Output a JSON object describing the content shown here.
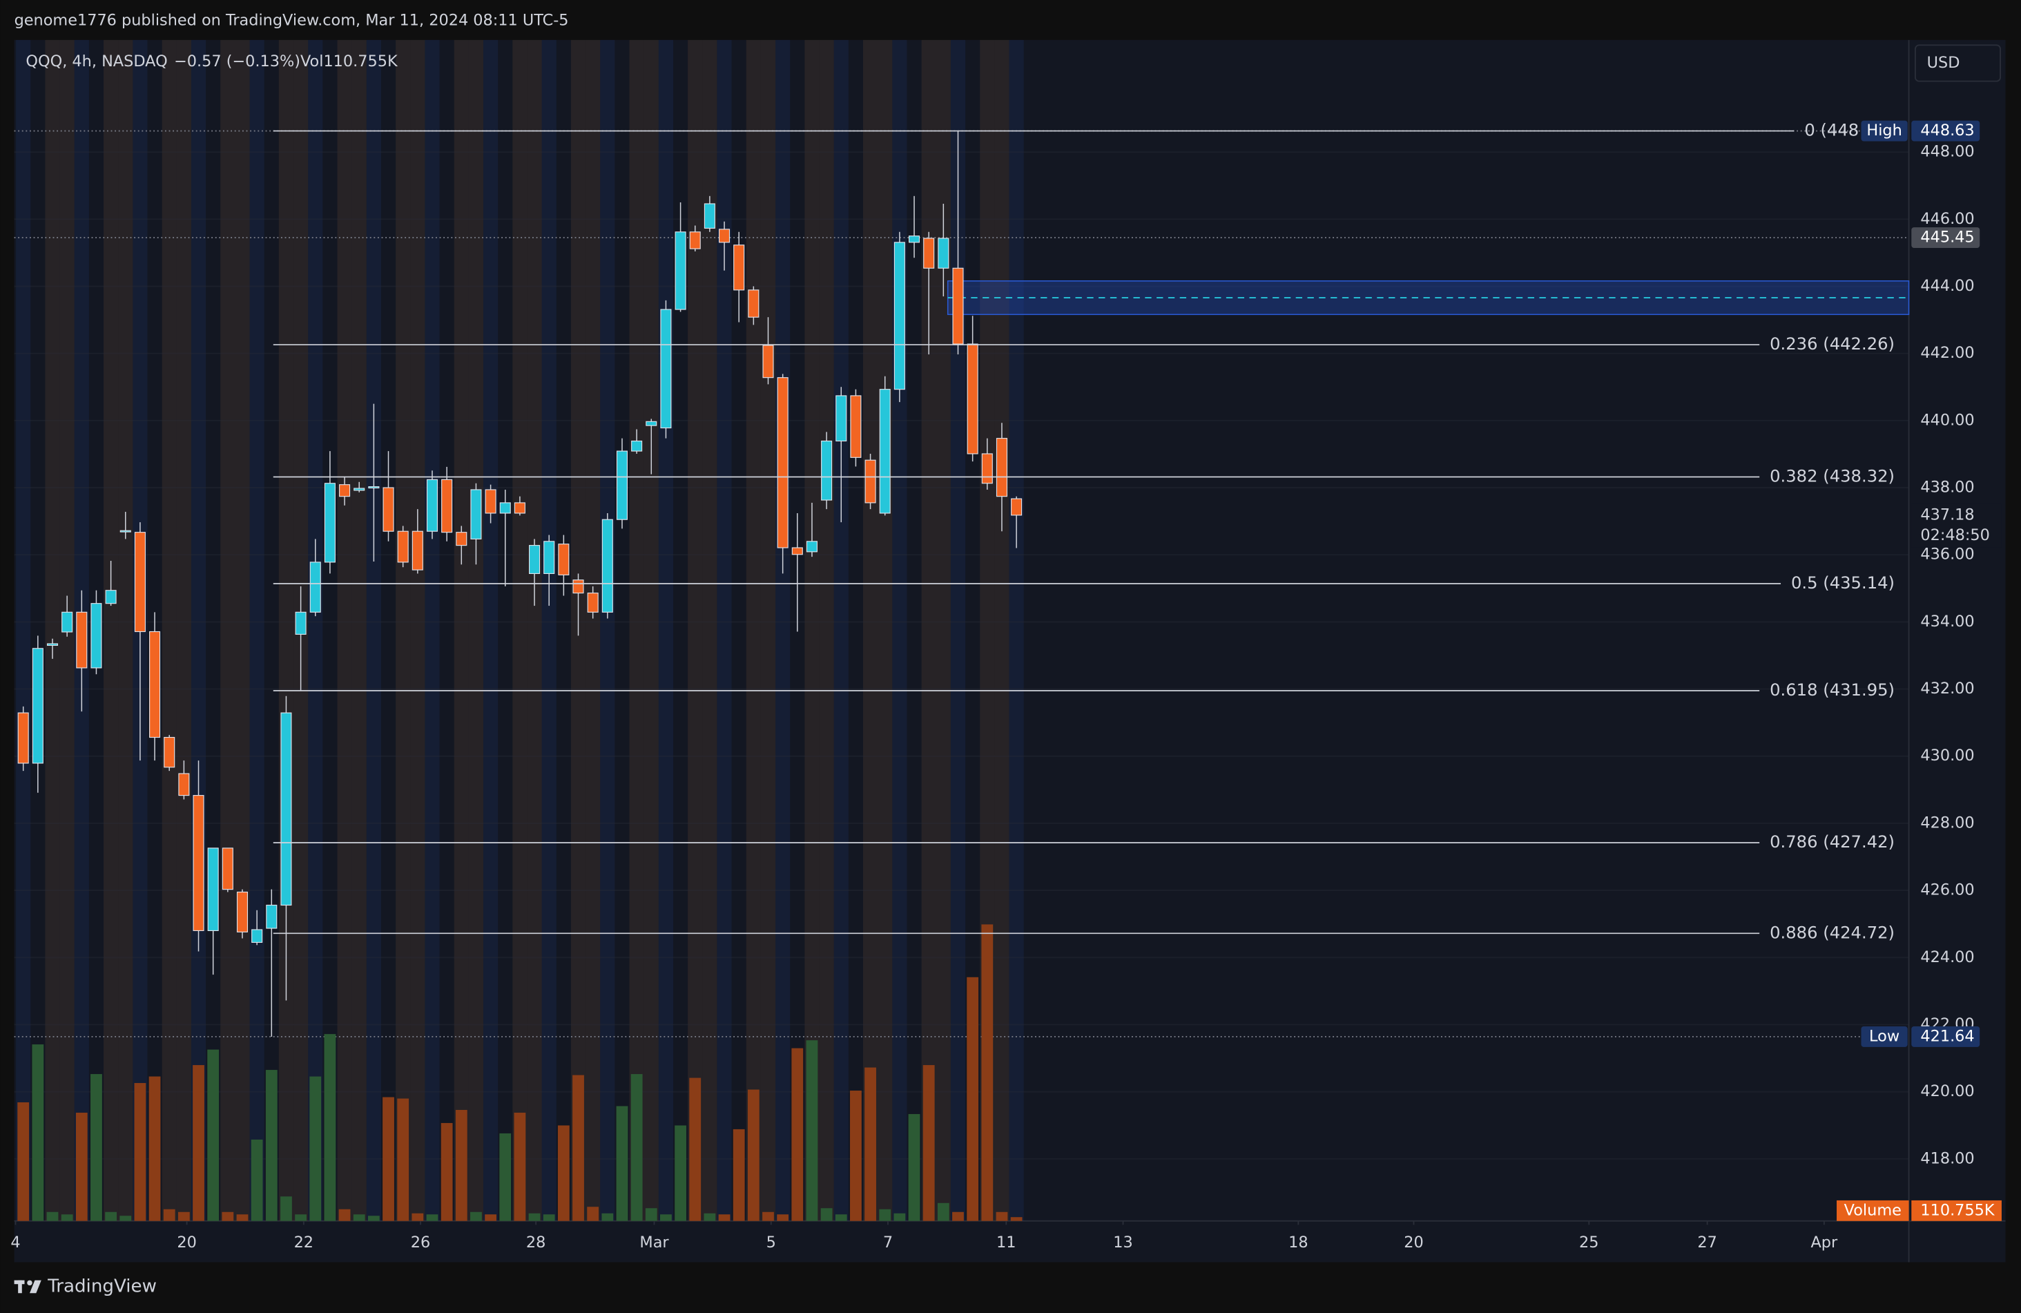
{
  "header": {
    "title": "genome1776 published on TradingView.com, Mar 11, 2024 08:11 UTC-5",
    "brand": "TradingView"
  },
  "chart_data": {
    "type": "candlestick",
    "symbol": "QQQ, 4h, NASDAQ",
    "change": "−0.57 (−0.13%)",
    "volume_text": "Vol110.755K",
    "currency": "USD",
    "x": [
      0,
      1,
      2,
      3,
      4,
      5,
      6,
      7,
      8,
      9,
      10,
      11,
      12,
      13,
      14,
      15,
      16,
      17,
      18,
      19,
      20,
      21,
      22,
      23,
      24,
      25,
      26,
      27,
      28,
      29,
      30,
      31,
      32,
      33,
      34,
      35,
      36,
      37,
      38,
      39,
      40,
      41,
      42,
      43,
      44,
      45,
      46,
      47,
      48,
      49,
      50,
      51,
      52,
      53,
      54,
      55,
      56,
      57,
      58,
      59,
      60,
      61,
      62,
      63,
      64,
      65,
      66,
      67,
      68
    ],
    "open": [
      431.29,
      429.79,
      433.3,
      433.7,
      434.29,
      432.63,
      434.55,
      436.7,
      436.67,
      433.71,
      430.56,
      429.48,
      428.83,
      424.8,
      427.26,
      425.95,
      424.45,
      424.87,
      425.56,
      433.63,
      434.29,
      435.78,
      438.09,
      437.92,
      437.99,
      438.0,
      436.7,
      436.7,
      436.7,
      438.24,
      436.67,
      436.47,
      437.94,
      437.24,
      437.55,
      435.44,
      435.44,
      436.32,
      435.25,
      434.86,
      434.29,
      437.05,
      439.09,
      439.85,
      439.78,
      443.31,
      445.62,
      445.73,
      445.7,
      445.23,
      443.89,
      442.24,
      441.28,
      436.21,
      436.09,
      437.63,
      439.39,
      440.74,
      438.82,
      437.24,
      440.93,
      445.31,
      445.43,
      444.54,
      444.54,
      442.28,
      439.01,
      439.47,
      437.67
    ],
    "high": [
      431.48,
      433.59,
      433.5,
      434.78,
      434.94,
      434.94,
      435.82,
      437.28,
      436.97,
      434.29,
      430.63,
      429.87,
      429.87,
      427.26,
      427.26,
      426.03,
      425.41,
      426.03,
      431.79,
      435.06,
      436.47,
      439.09,
      438.32,
      438.17,
      440.5,
      439.09,
      436.86,
      437.36,
      438.51,
      438.62,
      436.86,
      438.13,
      438.09,
      437.94,
      437.74,
      436.47,
      436.59,
      436.59,
      435.44,
      435.06,
      437.24,
      439.47,
      439.74,
      440.05,
      443.58,
      446.5,
      445.81,
      446.69,
      445.93,
      445.62,
      444.0,
      443.08,
      441.39,
      437.24,
      437.55,
      439.66,
      441.0,
      440.93,
      439.01,
      441.32,
      445.62,
      446.69,
      445.62,
      446.46,
      448.63,
      443.12,
      439.47,
      439.93,
      437.74
    ],
    "low": [
      429.56,
      428.91,
      432.9,
      433.56,
      431.33,
      432.44,
      434.48,
      436.47,
      429.87,
      429.87,
      429.56,
      428.71,
      424.18,
      423.49,
      425.95,
      424.57,
      424.37,
      421.64,
      422.72,
      431.94,
      434.17,
      435.44,
      437.47,
      437.86,
      435.8,
      436.4,
      435.63,
      435.44,
      436.47,
      436.4,
      435.71,
      435.71,
      436.94,
      435.06,
      437.17,
      434.48,
      434.48,
      434.78,
      433.59,
      434.1,
      434.1,
      436.78,
      439.01,
      438.4,
      439.47,
      443.24,
      445.04,
      445.62,
      444.47,
      442.93,
      442.85,
      441.08,
      435.44,
      433.71,
      435.94,
      437.36,
      436.97,
      438.63,
      437.36,
      437.17,
      440.55,
      444.85,
      441.97,
      443.7,
      441.97,
      438.78,
      437.94,
      436.7,
      436.2
    ],
    "close": [
      429.79,
      433.21,
      433.35,
      434.29,
      432.63,
      434.55,
      434.94,
      436.72,
      433.71,
      430.56,
      429.67,
      428.83,
      424.8,
      427.26,
      426.03,
      424.76,
      424.83,
      425.56,
      431.29,
      434.29,
      435.78,
      438.13,
      437.74,
      437.98,
      438.03,
      436.7,
      435.78,
      435.55,
      438.24,
      436.67,
      436.28,
      437.94,
      437.24,
      437.55,
      437.24,
      436.28,
      436.4,
      435.4,
      434.86,
      434.29,
      437.05,
      439.09,
      439.39,
      439.97,
      443.31,
      445.62,
      445.12,
      446.46,
      445.31,
      443.89,
      443.08,
      441.28,
      436.21,
      436.01,
      436.4,
      439.39,
      440.74,
      438.9,
      437.55,
      440.93,
      445.31,
      445.5,
      444.54,
      445.43,
      442.28,
      439.01,
      438.13,
      437.74,
      437.18
    ],
    "volume": [
      3440,
      5120,
      260,
      190,
      3140,
      4260,
      260,
      150,
      4000,
      4190,
      340,
      260,
      4520,
      4970,
      260,
      190,
      2360,
      4380,
      710,
      190,
      4190,
      5420,
      340,
      190,
      150,
      3590,
      3550,
      220,
      190,
      2840,
      3220,
      260,
      190,
      2540,
      3140,
      220,
      190,
      2770,
      4230,
      410,
      220,
      3330,
      4260,
      370,
      190,
      2770,
      4150,
      220,
      190,
      2660,
      3810,
      260,
      190,
      5010,
      5240,
      370,
      190,
      3780,
      4450,
      340,
      220,
      3100,
      4520,
      520,
      260,
      7070,
      8600,
      260,
      110.755
    ],
    "up_color": "#26c6da",
    "down_color": "#f26522",
    "volume_up_color": "#2c5a34",
    "volume_down_color": "#8b3d17",
    "xlim": [
      -0.62,
      129.1
    ],
    "xticks": [
      {
        "value": -0.53,
        "label": "4"
      },
      {
        "value": 11.2,
        "label": "20"
      },
      {
        "value": 19.2,
        "label": "22"
      },
      {
        "value": 27.2,
        "label": "26"
      },
      {
        "value": 35.1,
        "label": "28"
      },
      {
        "value": 43.2,
        "label": "Mar"
      },
      {
        "value": 51.2,
        "label": "5"
      },
      {
        "value": 59.2,
        "label": "7"
      },
      {
        "value": 67.3,
        "label": "11"
      },
      {
        "value": 75.3,
        "label": "13"
      },
      {
        "value": 87.3,
        "label": "18"
      },
      {
        "value": 95.2,
        "label": "20"
      },
      {
        "value": 107.2,
        "label": "25"
      },
      {
        "value": 115.3,
        "label": "27"
      },
      {
        "value": 123.3,
        "label": "Apr"
      }
    ],
    "ylim": [
      416.15,
      451.34
    ],
    "yticks": [
      {
        "value": 418,
        "label": "418.00"
      },
      {
        "value": 420,
        "label": "420.00"
      },
      {
        "value": 422,
        "label": "422.00"
      },
      {
        "value": 424,
        "label": "424.00"
      },
      {
        "value": 426,
        "label": "426.00"
      },
      {
        "value": 428,
        "label": "428.00"
      },
      {
        "value": 430,
        "label": "430.00"
      },
      {
        "value": 432,
        "label": "432.00"
      },
      {
        "value": 434,
        "label": "434.00"
      },
      {
        "value": 436,
        "label": "436.00"
      },
      {
        "value": 438,
        "label": "438.00"
      },
      {
        "value": 440,
        "label": "440.00"
      },
      {
        "value": 442,
        "label": "442.00"
      },
      {
        "value": 444,
        "label": "444.00"
      },
      {
        "value": 446,
        "label": "446.00"
      },
      {
        "value": 448,
        "label": "448.00"
      }
    ],
    "vlim": [
      0,
      8600
    ],
    "fib_levels": [
      {
        "label": "0 (448",
        "price": 448.63
      },
      {
        "label": "0.236 (442.26)",
        "price": 442.26
      },
      {
        "label": "0.382 (438.32)",
        "price": 438.32
      },
      {
        "label": "0.5 (435.14)",
        "price": 435.14
      },
      {
        "label": "0.618 (431.95)",
        "price": 431.95
      },
      {
        "label": "0.786 (427.42)",
        "price": 427.42
      },
      {
        "label": "0.886 (424.72)",
        "price": 424.72
      }
    ],
    "zone": {
      "start": 63.3,
      "top": 444.16,
      "bottom": 443.16,
      "mid": 443.66
    },
    "high_label": {
      "label": "High",
      "value": 448.63
    },
    "prev_label": {
      "value": 445.45
    },
    "last_label": {
      "value": 437.18,
      "countdown": "02:48:50"
    },
    "low_label": {
      "label": "Low",
      "value": 421.64
    },
    "volume_label": {
      "label": "Volume",
      "value_label": "110.755K"
    }
  }
}
